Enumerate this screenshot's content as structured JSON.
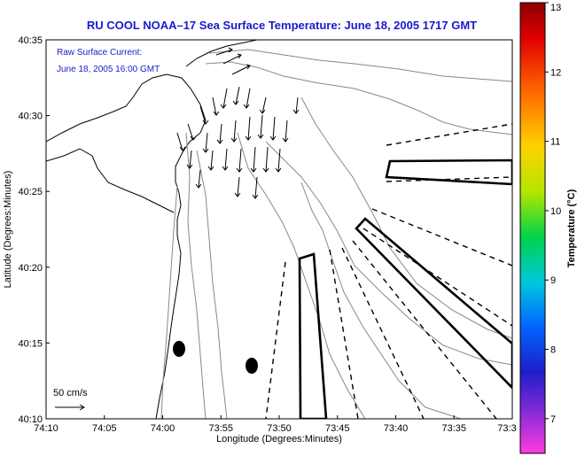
{
  "chart_data": {
    "type": "map",
    "title": "RU COOL  NOAA–17  Sea Surface Temperature:  June 18, 2005 1717 GMT",
    "xlabel": "Longitude (Degrees:Minutes)",
    "ylabel": "Latitude (Degrees:Minutes)",
    "x_ticks": [
      "74:10",
      "74:05",
      "74:00",
      "73:55",
      "73:50",
      "73:45",
      "73:40",
      "73:35",
      "73:3"
    ],
    "y_ticks": [
      "40:35",
      "40:30",
      "40:25",
      "40:20",
      "40:15",
      "40:10"
    ],
    "annotation_lines": [
      "Raw Surface Current:",
      "June 18, 2005 16:00 GMT"
    ],
    "scale_label": "50 cm/s",
    "colorbar": {
      "label": "Temperature (°C)",
      "ticks": [
        "13",
        "12",
        "11",
        "10",
        "9",
        "8",
        "7"
      ],
      "range": [
        6.5,
        13
      ]
    }
  }
}
